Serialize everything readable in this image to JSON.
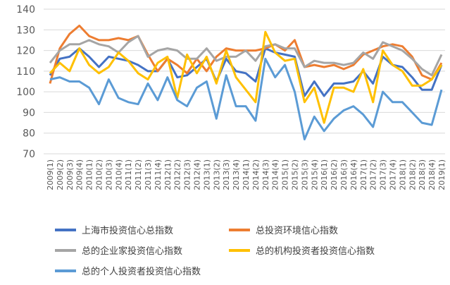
{
  "chart_data": {
    "type": "line",
    "title": "",
    "xlabel": "",
    "ylabel": "",
    "ylim": [
      70,
      140
    ],
    "yticks": [
      70,
      80,
      90,
      100,
      110,
      120,
      130,
      140
    ],
    "grid": true,
    "legend_position": "bottom",
    "x": [
      "2009(1)",
      "2009(2)",
      "2009(3)",
      "2009(4)",
      "2010(1)",
      "2010(2)",
      "2010(3)",
      "2010(4)",
      "2011(1)",
      "2011(2)",
      "2011(3)",
      "2011(4)",
      "2012(1)",
      "2012(2)",
      "2012(3)",
      "2012(4)",
      "2013(1)",
      "2013(2)",
      "2013(3)",
      "2013(4)",
      "2014(1)",
      "2014(2)",
      "2014(3)",
      "2014(4)",
      "2015(1)",
      "2015(2)",
      "2015(3)",
      "2015(4)",
      "2016(1)",
      "2016(2)",
      "2016(3)",
      "2016(4)",
      "2017(1)",
      "2017(2)",
      "2017(3)",
      "2017(4)",
      "2018(1)",
      "2018(2)",
      "2018(3)",
      "2018(4)",
      "2019(1)"
    ],
    "series": [
      {
        "name": "上海市投资信心总指数",
        "color": "#4472C4",
        "values": [
          108,
          116,
          117,
          121,
          117,
          112,
          117,
          116,
          115,
          113,
          110,
          110,
          116,
          107,
          108,
          112,
          116,
          105,
          116,
          110,
          109,
          105,
          121,
          119,
          118,
          117,
          98,
          105,
          98,
          104,
          104,
          105,
          110,
          104,
          117,
          113,
          112,
          107,
          101,
          101,
          113
        ]
      },
      {
        "name": "总投资环境信心指数",
        "color": "#ED7D31",
        "values": [
          104,
          121,
          128,
          132,
          127,
          125,
          125,
          126,
          125,
          127,
          118,
          110,
          116,
          113,
          109,
          116,
          110,
          117,
          121,
          120,
          120,
          120,
          121,
          123,
          120,
          125,
          112,
          113,
          112,
          113,
          111,
          113,
          118,
          120,
          122,
          123,
          122,
          117,
          108,
          106,
          114
        ]
      },
      {
        "name": "总的企业家投资信心指数",
        "color": "#A5A5A5",
        "values": [
          114,
          120,
          123,
          123,
          125,
          123,
          122,
          119,
          124,
          127,
          117,
          120,
          121,
          120,
          116,
          116,
          121,
          115,
          117,
          117,
          120,
          115,
          122,
          123,
          121,
          121,
          112,
          115,
          114,
          114,
          113,
          114,
          119,
          116,
          124,
          122,
          120,
          116,
          111,
          108,
          118
        ]
      },
      {
        "name": "总的机构投资者投资信心指数",
        "color": "#FFC000",
        "values": [
          109,
          114,
          110,
          121,
          113,
          109,
          112,
          119,
          115,
          109,
          106,
          114,
          117,
          97,
          118,
          109,
          117,
          104,
          120,
          107,
          101,
          95,
          129,
          119,
          115,
          116,
          95,
          102,
          85,
          102,
          102,
          100,
          111,
          95,
          120,
          113,
          110,
          103,
          103,
          106,
          113
        ]
      },
      {
        "name": "总的个人投资者投资信心指数",
        "color": "#5B9BD5",
        "values": [
          106,
          107,
          105,
          105,
          102,
          94,
          106,
          97,
          95,
          94,
          104,
          96,
          107,
          96,
          93,
          102,
          105,
          87,
          108,
          93,
          93,
          86,
          116,
          107,
          113,
          100,
          77,
          88,
          81,
          87,
          91,
          93,
          89,
          83,
          100,
          95,
          95,
          90,
          85,
          84,
          101
        ]
      }
    ]
  }
}
